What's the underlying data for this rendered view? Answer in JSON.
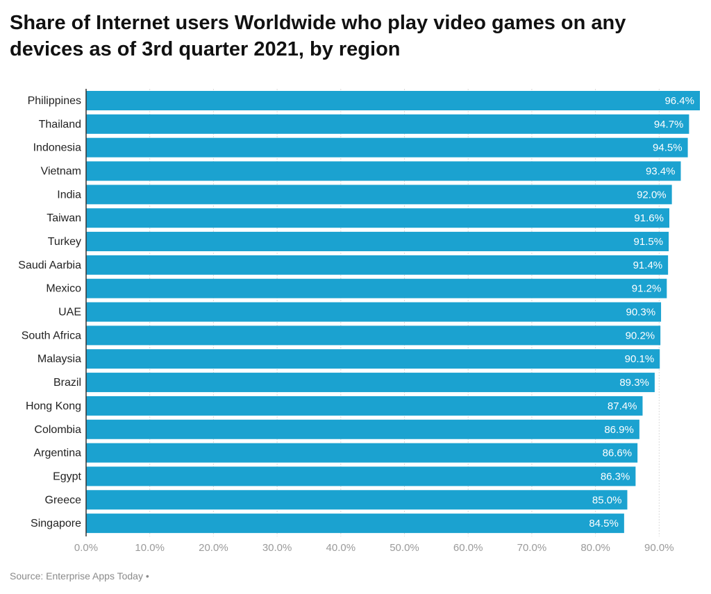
{
  "chart_data": {
    "type": "bar",
    "orientation": "horizontal",
    "title": "Share of Internet users Worldwide who play video games on any devices as of 3rd quarter 2021, by region",
    "categories": [
      "Philippines",
      "Thailand",
      "Indonesia",
      "Vietnam",
      "India",
      "Taiwan",
      "Turkey",
      "Saudi Aarbia",
      "Mexico",
      "UAE",
      "South Africa",
      "Malaysia",
      "Brazil",
      "Hong Kong",
      "Colombia",
      "Argentina",
      "Egypt",
      "Greece",
      "Singapore"
    ],
    "values": [
      96.4,
      94.7,
      94.5,
      93.4,
      92.0,
      91.6,
      91.5,
      91.4,
      91.2,
      90.3,
      90.2,
      90.1,
      89.3,
      87.4,
      86.9,
      86.6,
      86.3,
      85.0,
      84.5
    ],
    "value_labels": [
      "96.4%",
      "94.7%",
      "94.5%",
      "93.4%",
      "92.0%",
      "91.6%",
      "91.5%",
      "91.4%",
      "91.2%",
      "90.3%",
      "90.2%",
      "90.1%",
      "89.3%",
      "87.4%",
      "86.9%",
      "86.6%",
      "86.3%",
      "85.0%",
      "84.5%"
    ],
    "xlim": [
      0,
      96.4
    ],
    "xticks": [
      0,
      10,
      20,
      30,
      40,
      50,
      60,
      70,
      80,
      90
    ],
    "xtick_labels": [
      "0.0%",
      "10.0%",
      "20.0%",
      "30.0%",
      "40.0%",
      "50.0%",
      "60.0%",
      "70.0%",
      "80.0%",
      "90.0%"
    ],
    "xlabel": "",
    "ylabel": "",
    "grid": true,
    "bar_color": "#1ba2d0"
  },
  "source_text": "Source: Enterprise Apps Today •"
}
